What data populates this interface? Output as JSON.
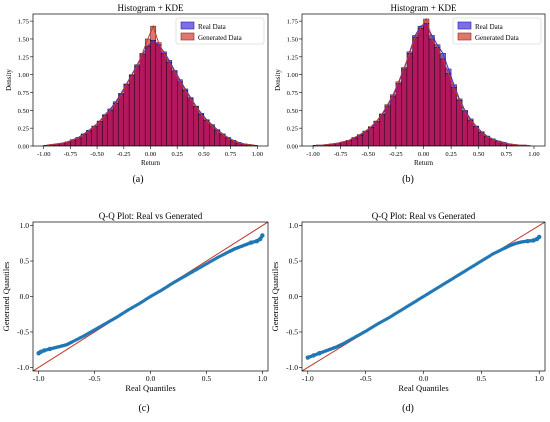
{
  "colors": {
    "real": "#7b6fe8",
    "real_edge": "#2b1f9e",
    "generated": "#e0766c",
    "overlap": "#b2185e",
    "kde_real": "#3333cc",
    "kde_gen": "#c0392b",
    "qq_points": "#1f77b4",
    "ref_line": "#c0392b"
  },
  "chart_data": [
    {
      "type": "bar",
      "panel_label": "(a)",
      "title": "Histogram + KDE",
      "xlabel": "Return",
      "ylabel": "Density",
      "xlim": [
        -1.1,
        1.1
      ],
      "ylim": [
        0,
        1.85
      ],
      "xticks": [
        "-1.00",
        "-0.75",
        "-0.50",
        "-0.25",
        "0.00",
        "0.25",
        "0.50",
        "0.75",
        "1.00"
      ],
      "xtick_values": [
        -1.0,
        -0.75,
        -0.5,
        -0.25,
        0.0,
        0.25,
        0.5,
        0.75,
        1.0
      ],
      "yticks": [
        "0.00",
        "0.25",
        "0.50",
        "0.75",
        "1.00",
        "1.25",
        "1.50",
        "1.75"
      ],
      "ytick_values": [
        0,
        0.25,
        0.5,
        0.75,
        1.0,
        1.25,
        1.5,
        1.75
      ],
      "legend": [
        "Real Data",
        "Generated Data"
      ],
      "legend_position": "top-right",
      "bin_start": -1.0,
      "bin_width": 0.05,
      "series": [
        {
          "name": "Real Data",
          "values": [
            0.01,
            0.02,
            0.03,
            0.04,
            0.06,
            0.09,
            0.12,
            0.17,
            0.22,
            0.28,
            0.35,
            0.44,
            0.52,
            0.62,
            0.74,
            0.87,
            1.0,
            1.14,
            1.28,
            1.4,
            1.48,
            1.42,
            1.32,
            1.2,
            1.06,
            0.93,
            0.8,
            0.68,
            0.56,
            0.46,
            0.37,
            0.3,
            0.23,
            0.17,
            0.12,
            0.08,
            0.05,
            0.03,
            0.02,
            0.01
          ]
        },
        {
          "name": "Generated Data",
          "values": [
            0.01,
            0.02,
            0.03,
            0.04,
            0.06,
            0.08,
            0.11,
            0.16,
            0.21,
            0.27,
            0.34,
            0.43,
            0.5,
            0.6,
            0.72,
            0.86,
            0.99,
            1.12,
            1.3,
            1.5,
            1.68,
            1.45,
            1.3,
            1.17,
            1.04,
            0.9,
            0.78,
            0.66,
            0.55,
            0.44,
            0.36,
            0.28,
            0.22,
            0.16,
            0.11,
            0.07,
            0.04,
            0.03,
            0.02,
            0.01
          ]
        }
      ]
    },
    {
      "type": "bar",
      "panel_label": "(b)",
      "title": "Histogram + KDE",
      "xlabel": "Return",
      "ylabel": "Density",
      "xlim": [
        -1.1,
        1.1
      ],
      "ylim": [
        0,
        1.85
      ],
      "xticks": [
        "-1.00",
        "-0.75",
        "-0.50",
        "-0.25",
        "0.00",
        "0.25",
        "0.50",
        "0.75",
        "1.00"
      ],
      "xtick_values": [
        -1.0,
        -0.75,
        -0.5,
        -0.25,
        0.0,
        0.25,
        0.5,
        0.75,
        1.0
      ],
      "yticks": [
        "0.00",
        "0.25",
        "0.50",
        "0.75",
        "1.00",
        "1.25",
        "1.50",
        "1.75"
      ],
      "ytick_values": [
        0,
        0.25,
        0.5,
        0.75,
        1.0,
        1.25,
        1.5,
        1.75
      ],
      "legend": [
        "Real Data",
        "Generated Data"
      ],
      "legend_position": "top-right",
      "bin_start": -1.0,
      "bin_width": 0.05,
      "series": [
        {
          "name": "Real Data",
          "values": [
            0.01,
            0.01,
            0.02,
            0.03,
            0.04,
            0.06,
            0.08,
            0.11,
            0.15,
            0.2,
            0.26,
            0.34,
            0.44,
            0.56,
            0.7,
            0.88,
            1.08,
            1.32,
            1.55,
            1.68,
            1.72,
            1.55,
            1.42,
            1.3,
            1.08,
            0.86,
            0.66,
            0.5,
            0.38,
            0.28,
            0.2,
            0.14,
            0.1,
            0.07,
            0.05,
            0.03,
            0.02,
            0.01,
            0.01,
            0.0
          ]
        },
        {
          "name": "Generated Data",
          "values": [
            0.01,
            0.01,
            0.02,
            0.03,
            0.04,
            0.06,
            0.08,
            0.12,
            0.16,
            0.21,
            0.27,
            0.35,
            0.45,
            0.58,
            0.72,
            0.9,
            1.1,
            1.3,
            1.52,
            1.65,
            1.78,
            1.5,
            1.38,
            1.22,
            1.02,
            0.82,
            0.64,
            0.48,
            0.36,
            0.27,
            0.19,
            0.13,
            0.09,
            0.06,
            0.04,
            0.03,
            0.02,
            0.01,
            0.01,
            0.0
          ]
        }
      ]
    },
    {
      "type": "scatter",
      "panel_label": "(c)",
      "title": "Q-Q Plot: Real vs Generated",
      "xlabel": "Real Quantiles",
      "ylabel": "Generated Quantiles",
      "xlim": [
        -1.05,
        1.05
      ],
      "ylim": [
        -1.05,
        1.05
      ],
      "xticks": [
        "-1.0",
        "-0.5",
        "0.0",
        "0.5",
        "1.0"
      ],
      "xtick_values": [
        -1.0,
        -0.5,
        0.0,
        0.5,
        1.0
      ],
      "yticks": [
        "-1.0",
        "-0.5",
        "0.0",
        "0.5",
        "1.0"
      ],
      "ytick_values": [
        -1.0,
        -0.5,
        0.0,
        0.5,
        1.0
      ],
      "reference_line": [
        [
          -1.05,
          -1.05
        ],
        [
          1.05,
          1.05
        ]
      ],
      "x": [
        -1.0,
        -0.98,
        -0.95,
        -0.9,
        -0.85,
        -0.8,
        -0.75,
        -0.7,
        -0.6,
        -0.5,
        -0.4,
        -0.3,
        -0.2,
        -0.1,
        0.0,
        0.1,
        0.2,
        0.3,
        0.4,
        0.5,
        0.6,
        0.7,
        0.75,
        0.8,
        0.85,
        0.9,
        0.95,
        0.98,
        1.0
      ],
      "y": [
        -0.8,
        -0.78,
        -0.76,
        -0.74,
        -0.72,
        -0.7,
        -0.68,
        -0.64,
        -0.56,
        -0.47,
        -0.38,
        -0.29,
        -0.19,
        -0.1,
        0.0,
        0.09,
        0.19,
        0.28,
        0.37,
        0.46,
        0.55,
        0.63,
        0.67,
        0.7,
        0.73,
        0.76,
        0.78,
        0.81,
        0.86
      ]
    },
    {
      "type": "scatter",
      "panel_label": "(d)",
      "title": "Q-Q Plot: Real vs Generated",
      "xlabel": "Real Quantiles",
      "ylabel": "Generated Quantiles",
      "xlim": [
        -1.05,
        1.05
      ],
      "ylim": [
        -1.05,
        1.05
      ],
      "xticks": [
        "-1.0",
        "-0.5",
        "0.0",
        "0.5",
        "1.0"
      ],
      "xtick_values": [
        -1.0,
        -0.5,
        0.0,
        0.5,
        1.0
      ],
      "yticks": [
        "-1.0",
        "-0.5",
        "0.0",
        "0.5",
        "1.0"
      ],
      "ytick_values": [
        -1.0,
        -0.5,
        0.0,
        0.5,
        1.0
      ],
      "reference_line": [
        [
          -1.05,
          -1.05
        ],
        [
          1.05,
          1.05
        ]
      ],
      "x": [
        -1.0,
        -0.95,
        -0.9,
        -0.85,
        -0.8,
        -0.75,
        -0.7,
        -0.6,
        -0.5,
        -0.4,
        -0.3,
        -0.2,
        -0.1,
        0.0,
        0.1,
        0.2,
        0.3,
        0.4,
        0.5,
        0.6,
        0.7,
        0.75,
        0.8,
        0.85,
        0.9,
        0.95,
        0.98,
        1.0
      ],
      "y": [
        -0.86,
        -0.83,
        -0.8,
        -0.77,
        -0.74,
        -0.71,
        -0.67,
        -0.58,
        -0.49,
        -0.39,
        -0.3,
        -0.2,
        -0.1,
        0.0,
        0.1,
        0.2,
        0.3,
        0.4,
        0.5,
        0.6,
        0.68,
        0.72,
        0.75,
        0.77,
        0.78,
        0.79,
        0.81,
        0.84
      ]
    }
  ]
}
